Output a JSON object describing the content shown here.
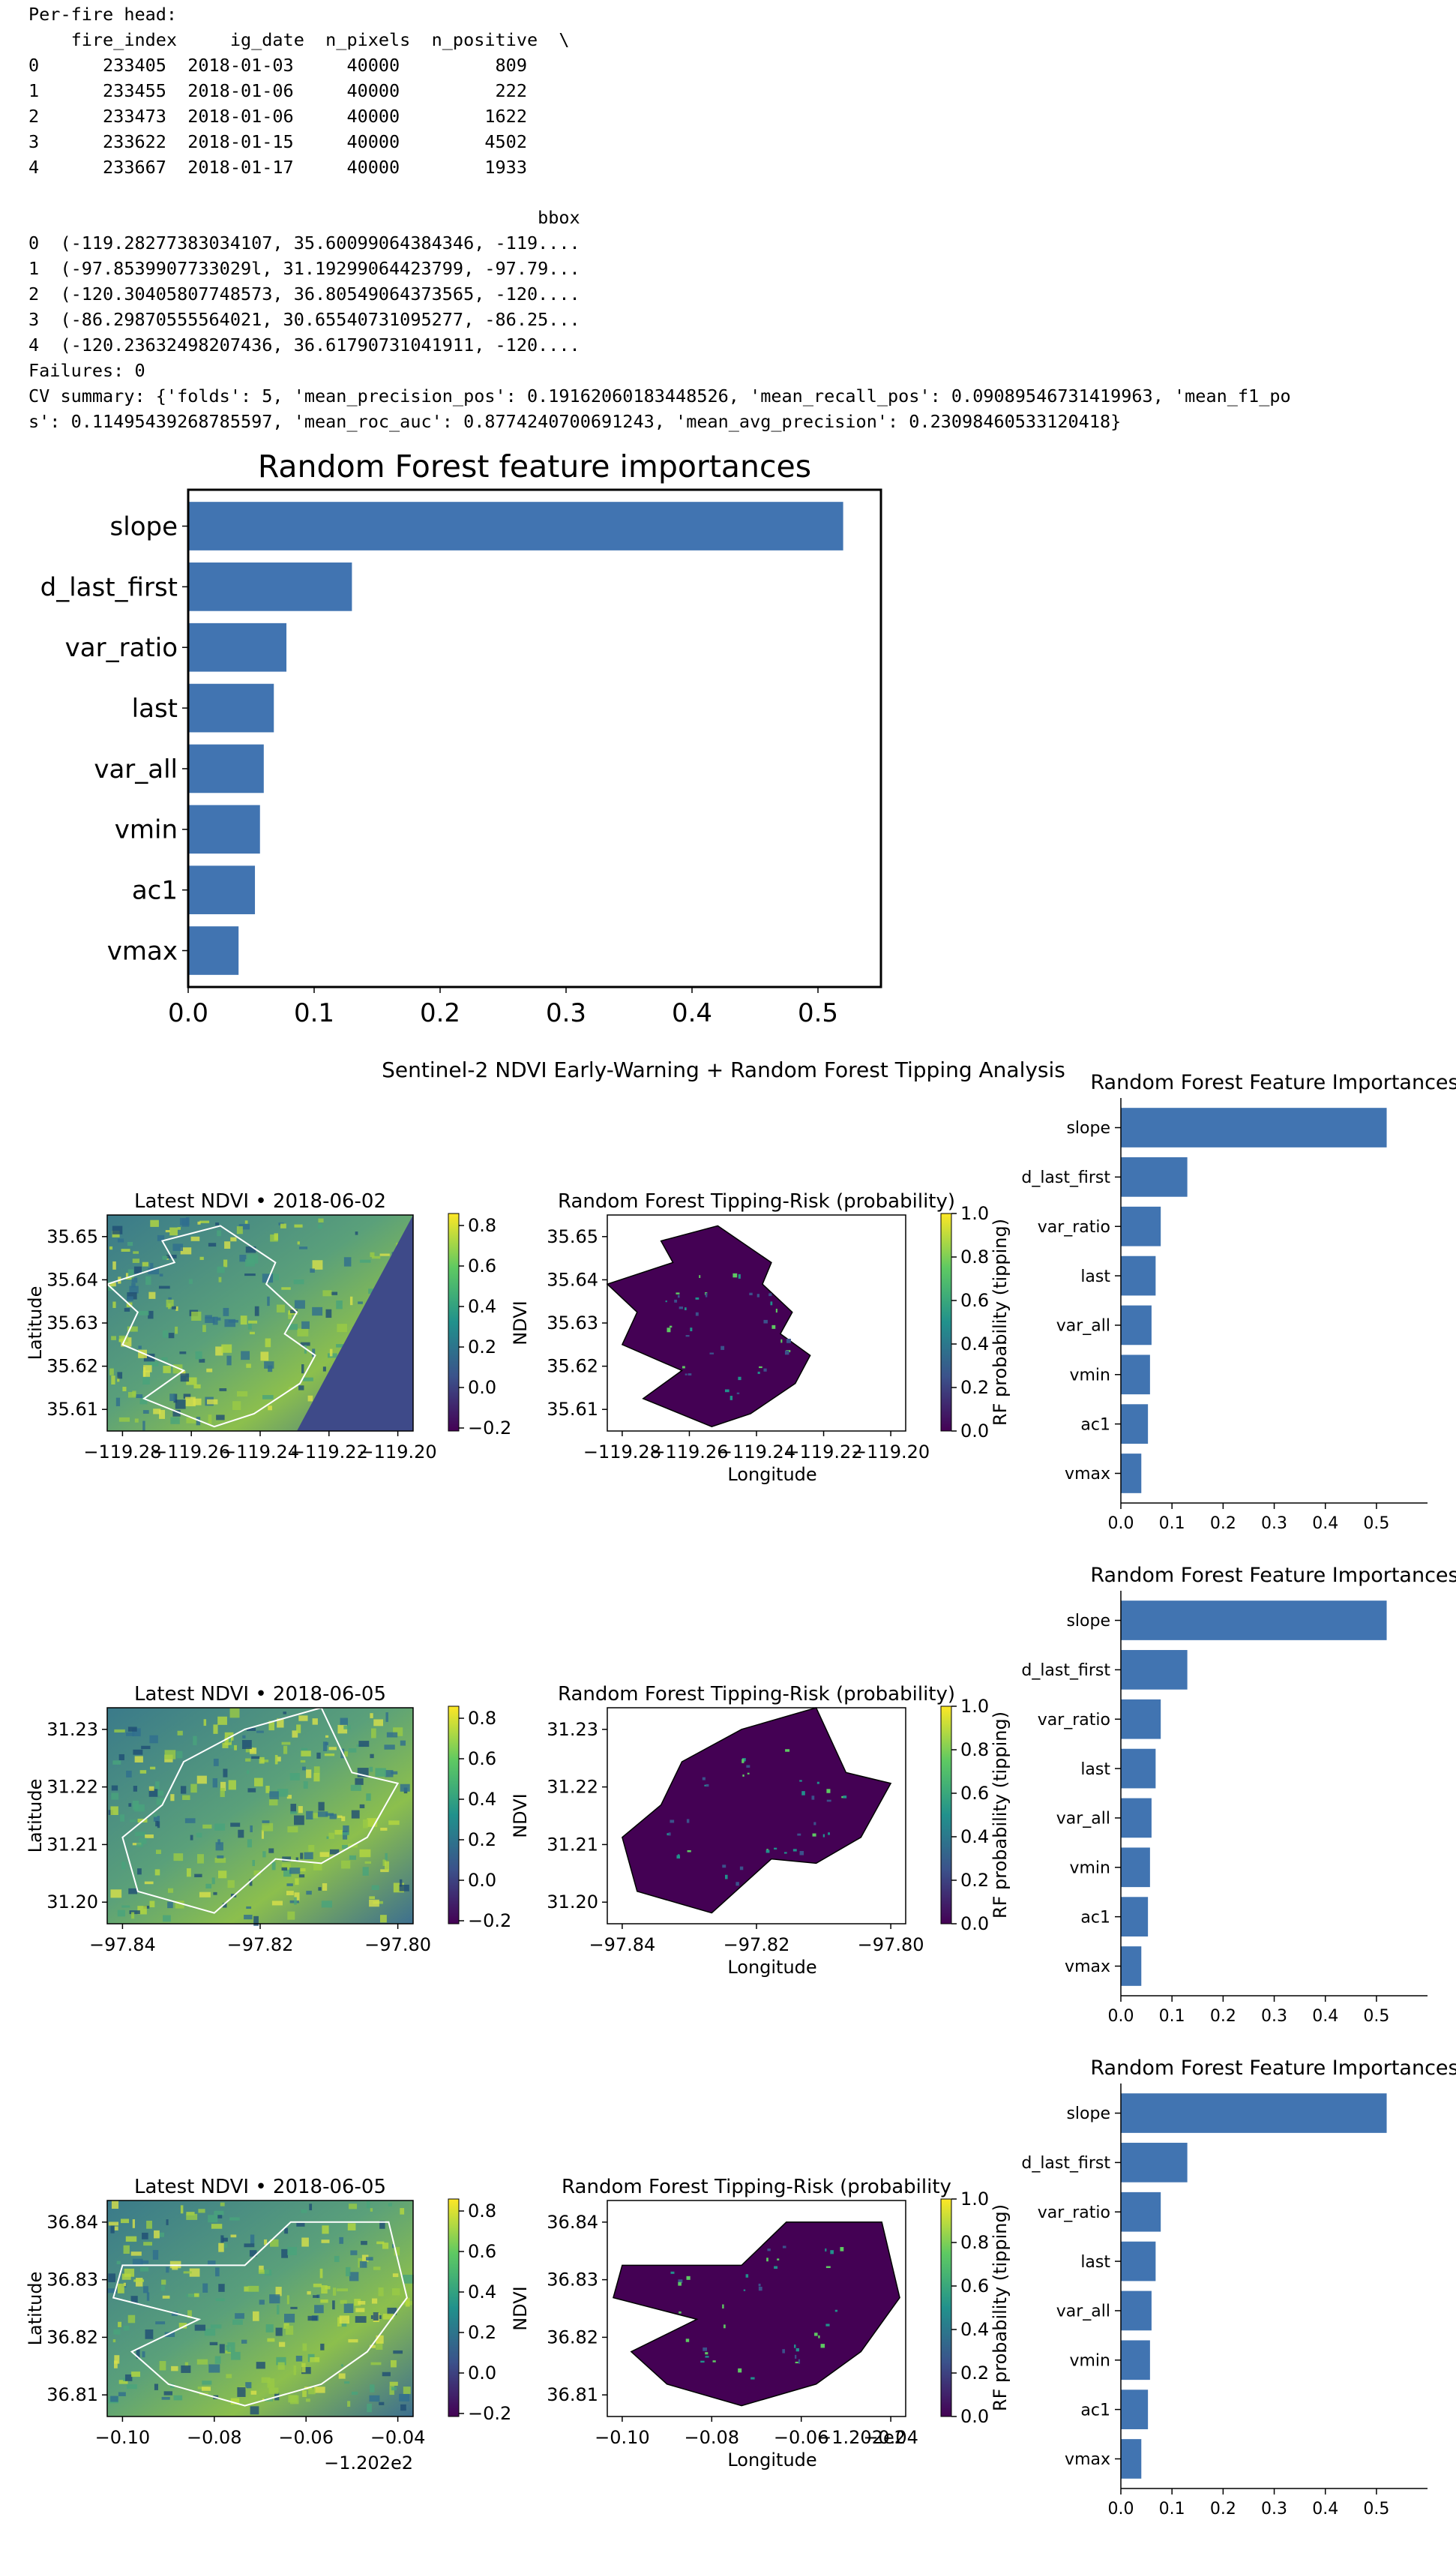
{
  "stdout": {
    "head_label": "Per-fire head:",
    "head_header": "    fire_index     ig_date  n_pixels  n_positive  \\",
    "head_rows": [
      "0      233405  2018-01-03     40000         809",
      "1      233455  2018-01-06     40000         222",
      "2      233473  2018-01-06     40000        1622",
      "3      233622  2018-01-15     40000        4502",
      "4      233667  2018-01-17     40000        1933"
    ],
    "bbox_header": "                                                bbox",
    "bbox_rows": [
      "0  (-119.28277383034107, 35.60099064384346, -119....",
      "1  (-97.8539907733029l, 31.19299064423799, -97.79...",
      "2  (-120.30405807748573, 36.80549064373565, -120....",
      "3  (-86.29870555564021, 30.65540731095277, -86.25...",
      "4  (-120.23632498207436, 36.61790731041911, -120...."
    ],
    "failures": "Failures: 0",
    "cv_line1": "CV summary: {'folds': 5, 'mean_precision_pos': 0.19162060183448526, 'mean_recall_pos': 0.09089546731419963, 'mean_f1_po",
    "cv_line2": "s': 0.11495439268785597, 'mean_roc_auc': 0.8774240700691243, 'mean_avg_precision': 0.23098460533120418}"
  },
  "chart_data": [
    {
      "type": "bar",
      "orientation": "horizontal",
      "title": "Random Forest feature importances",
      "categories": [
        "slope",
        "d_last_first",
        "var_ratio",
        "last",
        "var_all",
        "vmin",
        "ac1",
        "vmax"
      ],
      "values": [
        0.52,
        0.13,
        0.078,
        0.068,
        0.06,
        0.057,
        0.053,
        0.04
      ],
      "xlim": [
        0,
        0.55
      ],
      "xticks": [
        "0.0",
        "0.1",
        "0.2",
        "0.3",
        "0.4",
        "0.5"
      ],
      "color": "#4174b1"
    },
    {
      "type": "figure",
      "suptitle": "Sentinel-2 NDVI Early-Warning + Random Forest Tipping Analysis",
      "rows": [
        {
          "ndvi_map": {
            "title": "Latest NDVI • 2018-06-02",
            "ylabel": "Latitude",
            "xticks": [
              "−119.28",
              "−119.26",
              "−119.24",
              "−119.22",
              "−119.20"
            ],
            "yticks": [
              "35.65",
              "35.64",
              "35.63",
              "35.62",
              "35.61"
            ],
            "offset": "",
            "colorbar_ticks": [
              "0.8",
              "0.6",
              "0.4",
              "0.2",
              "0.0",
              "−0.2"
            ]
          },
          "risk_map": {
            "title": "Random Forest Tipping-Risk (probability)",
            "xlabel": "Longitude",
            "ylabel": "NDVI",
            "xticks": [
              "−119.28",
              "−119.26",
              "−119.24",
              "−119.22",
              "−119.20"
            ],
            "yticks": [
              "35.65",
              "35.64",
              "35.63",
              "35.62",
              "35.61"
            ],
            "offset": "",
            "colorbar_label": "RF probability (tipping)",
            "colorbar_ticks": [
              "1.0",
              "0.8",
              "0.6",
              "0.4",
              "0.2",
              "0.0"
            ]
          },
          "importances": {
            "title": "Random Forest Feature Importances",
            "categories": [
              "slope",
              "d_last_first",
              "var_ratio",
              "last",
              "var_all",
              "vmin",
              "ac1",
              "vmax"
            ],
            "values": [
              0.52,
              0.13,
              0.078,
              0.068,
              0.06,
              0.057,
              0.053,
              0.04
            ],
            "xticks": [
              "0.0",
              "0.1",
              "0.2",
              "0.3",
              "0.4",
              "0.5"
            ]
          }
        },
        {
          "ndvi_map": {
            "title": "Latest NDVI • 2018-06-05",
            "ylabel": "Latitude",
            "xticks": [
              "−97.84",
              "−97.82",
              "−97.80"
            ],
            "yticks": [
              "31.23",
              "31.22",
              "31.21",
              "31.20"
            ],
            "offset": "",
            "colorbar_ticks": [
              "0.8",
              "0.6",
              "0.4",
              "0.2",
              "0.0",
              "−0.2"
            ]
          },
          "risk_map": {
            "title": "Random Forest Tipping-Risk (probability)",
            "xlabel": "Longitude",
            "ylabel": "NDVI",
            "xticks": [
              "−97.84",
              "−97.82",
              "−97.80"
            ],
            "yticks": [
              "31.23",
              "31.22",
              "31.21",
              "31.20"
            ],
            "offset": "",
            "colorbar_label": "RF probability (tipping)",
            "colorbar_ticks": [
              "1.0",
              "0.8",
              "0.6",
              "0.4",
              "0.2",
              "0.0"
            ]
          },
          "importances": {
            "title": "Random Forest Feature Importances",
            "categories": [
              "slope",
              "d_last_first",
              "var_ratio",
              "last",
              "var_all",
              "vmin",
              "ac1",
              "vmax"
            ],
            "values": [
              0.52,
              0.13,
              0.078,
              0.068,
              0.06,
              0.057,
              0.053,
              0.04
            ],
            "xticks": [
              "0.0",
              "0.1",
              "0.2",
              "0.3",
              "0.4",
              "0.5"
            ]
          }
        },
        {
          "ndvi_map": {
            "title": "Latest NDVI • 2018-06-05",
            "ylabel": "Latitude",
            "xticks": [
              "−0.10",
              "−0.08",
              "−0.06",
              "−0.04"
            ],
            "yticks": [
              "36.84",
              "36.83",
              "36.82",
              "36.81"
            ],
            "offset": "−1.202e2",
            "colorbar_ticks": [
              "0.8",
              "0.6",
              "0.4",
              "0.2",
              "0.0",
              "−0.2"
            ]
          },
          "risk_map": {
            "title": "Random Forest Tipping-Risk (probability",
            "xlabel": "Longitude",
            "ylabel": "NDVI",
            "xticks": [
              "−0.10",
              "−0.08",
              "−0.06",
              "−0.04"
            ],
            "yticks": [
              "36.84",
              "36.83",
              "36.82",
              "36.81"
            ],
            "offset": "−1.202e2",
            "colorbar_label": "RF probability (tipping)",
            "colorbar_ticks": [
              "1.0",
              "0.8",
              "0.6",
              "0.4",
              "0.2",
              "0.0"
            ]
          },
          "importances": {
            "title": "Random Forest Feature Importances",
            "categories": [
              "slope",
              "d_last_first",
              "var_ratio",
              "last",
              "var_all",
              "vmin",
              "ac1",
              "vmax"
            ],
            "values": [
              0.52,
              0.13,
              0.078,
              0.068,
              0.06,
              0.057,
              0.053,
              0.04
            ],
            "xticks": [
              "0.0",
              "0.1",
              "0.2",
              "0.3",
              "0.4",
              "0.5"
            ]
          }
        }
      ]
    }
  ]
}
